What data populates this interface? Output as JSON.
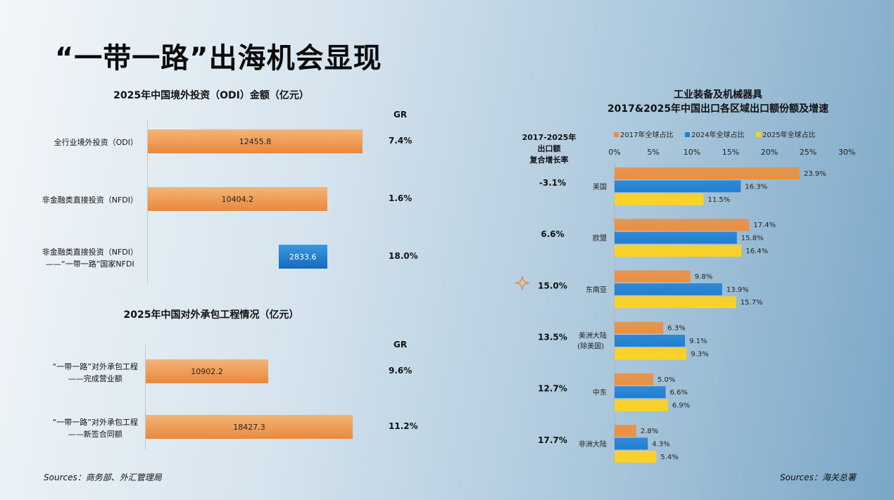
{
  "title": "“一带一路”出海机会显现",
  "left": {
    "odi_chart": {
      "title": "2025年中国境外投资（ODI）金额（亿元）",
      "gr_header": "GR",
      "rows": [
        {
          "label": "全行业境外投资（ODI）",
          "label2": "",
          "value_text": "12455.8",
          "gr": "7.4%"
        },
        {
          "label": "非金融类直接投资（NFDI）",
          "label2": "",
          "value_text": "10404.2",
          "gr": "1.6%"
        },
        {
          "label": "非金融类直接投资（NFDI）",
          "label2": "——“一带一路”国家NFDI",
          "value_text": "2833.6",
          "gr": "18.0%"
        }
      ]
    },
    "contract_chart": {
      "title": "2025年中国对外承包工程情况（亿元）",
      "gr_header": "GR",
      "rows": [
        {
          "label": "“一带一路”对外承包工程",
          "label2": "——完成营业额",
          "value_text": "10902.2",
          "gr": "9.6%"
        },
        {
          "label": "“一带一路”对外承包工程",
          "label2": "——新签合同额",
          "value_text": "18427.3",
          "gr": "11.2%"
        }
      ]
    },
    "sources": "Sources：商务部、外汇管理局"
  },
  "right": {
    "title_line1": "工业装备及机械器具",
    "title_line2": "2017&2025年中国出口各区域出口额份额及增速",
    "cagr_header": "2017-2025年\n出口额\n复合增长率",
    "cagr_line1": "2017-2025年",
    "cagr_line2": "出口额",
    "cagr_line3": "复合增长率",
    "legend": [
      "2017年全球占比",
      "2024年全球占比",
      "2025年全球占比"
    ],
    "sources": "Sources：海关总署",
    "rows": [
      {
        "cagr": "-3.1%",
        "region": "美国",
        "region2": ""
      },
      {
        "cagr": "6.6%",
        "region": "欧盟",
        "region2": ""
      },
      {
        "cagr": "15.0%",
        "region": "东南亚",
        "region2": ""
      },
      {
        "cagr": "13.5%",
        "region": "美洲大陆",
        "region2": "(除美国)"
      },
      {
        "cagr": "12.7%",
        "region": "中东",
        "region2": ""
      },
      {
        "cagr": "17.7%",
        "region": "非洲大陆",
        "region2": ""
      }
    ]
  },
  "colors": {
    "orange": "#ec8f3e",
    "blue": "#1f7fd3",
    "yellow": "#ffd21f"
  },
  "chart_data": [
    {
      "type": "bar",
      "orientation": "horizontal",
      "title": "2025年中国境外投资（ODI）金额（亿元）",
      "categories": [
        "全行业境外投资（ODI）",
        "非金融类直接投资（NFDI）",
        "非金融类直接投资（NFDI）——“一带一路”国家NFDI"
      ],
      "values": [
        12455.8,
        10404.2,
        2833.6
      ],
      "gr": [
        "7.4%",
        "1.6%",
        "18.0%"
      ]
    },
    {
      "type": "bar",
      "orientation": "horizontal",
      "title": "2025年中国对外承包工程情况（亿元）",
      "categories": [
        "“一带一路”对外承包工程——完成营业额",
        "“一带一路”对外承包工程——新签合同额"
      ],
      "values": [
        10902.2,
        18427.3
      ],
      "gr": [
        "9.6%",
        "11.2%"
      ]
    },
    {
      "type": "bar",
      "orientation": "horizontal",
      "title": "工业装备及机械器具 2017&2025年中国出口各区域出口额份额及增速",
      "categories": [
        "美国",
        "欧盟",
        "东南亚",
        "美洲大陆(除美国)",
        "中东",
        "非洲大陆"
      ],
      "xlim": [
        0,
        30
      ],
      "x_ticks": [
        "0%",
        "5%",
        "10%",
        "15%",
        "20%",
        "25%",
        "30%"
      ],
      "series": [
        {
          "name": "2017年全球占比",
          "values": [
            23.9,
            17.4,
            9.8,
            6.3,
            5.0,
            2.8
          ]
        },
        {
          "name": "2024年全球占比",
          "values": [
            16.3,
            15.8,
            13.9,
            9.1,
            6.6,
            4.3
          ]
        },
        {
          "name": "2025年全球占比",
          "values": [
            11.5,
            16.4,
            15.7,
            9.3,
            6.9,
            5.4
          ]
        }
      ],
      "cagr": [
        "-3.1%",
        "6.6%",
        "15.0%",
        "13.5%",
        "12.7%",
        "17.7%"
      ],
      "legend_position": "top"
    }
  ]
}
